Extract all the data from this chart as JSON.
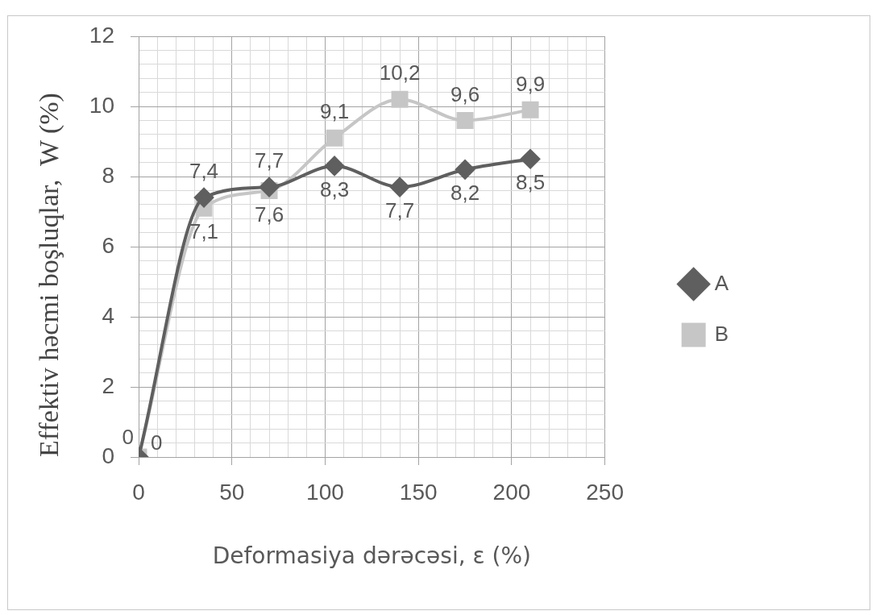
{
  "chart_data": {
    "type": "line",
    "xlabel": "Deformasiya dərəcəsi, ε (%)",
    "ylabel": "Effektiv həcmi boşluqlar,  W (%)",
    "x": [
      0,
      35,
      70,
      105,
      140,
      175,
      210
    ],
    "series": [
      {
        "name": "A",
        "color": "#5f5f5f",
        "marker": "diamond",
        "values": [
          0,
          7.4,
          7.7,
          8.3,
          7.7,
          8.2,
          8.5
        ],
        "value_labels": [
          "0",
          "7,4",
          "7,7",
          "8,3",
          "7,7",
          "8,2",
          "8,5"
        ]
      },
      {
        "name": "B",
        "color": "#c6c6c6",
        "marker": "square",
        "values": [
          0,
          7.1,
          7.6,
          9.1,
          10.2,
          9.6,
          9.9
        ],
        "value_labels": [
          "0",
          "7,1",
          "7,6",
          "9,1",
          "10,2",
          "9,6",
          "9,9"
        ]
      }
    ],
    "xlim": [
      0,
      250
    ],
    "ylim": [
      0,
      12
    ],
    "xticks": [
      0,
      {
        "value": 10,
        "label": null
      },
      {
        "value": 20,
        "label": null
      },
      {
        "value": 30,
        "label": null
      },
      {
        "value": 40,
        "label": null
      },
      50,
      {
        "value": 60,
        "label": null
      },
      {
        "value": 70,
        "label": null
      },
      {
        "value": 80,
        "label": null
      },
      {
        "value": 90,
        "label": null
      },
      100,
      {
        "value": 110,
        "label": null
      },
      {
        "value": 120,
        "label": null
      },
      {
        "value": 130,
        "label": null
      },
      {
        "value": 140,
        "label": null
      },
      150,
      {
        "value": 160,
        "label": null
      },
      {
        "value": 170,
        "label": null
      },
      {
        "value": 180,
        "label": null
      },
      {
        "value": 190,
        "label": null
      },
      200,
      {
        "value": 210,
        "label": null
      },
      {
        "value": 220,
        "label": null
      },
      {
        "value": 230,
        "label": null
      },
      {
        "value": 240,
        "label": null
      },
      250
    ],
    "yticks": [
      0,
      {
        "value": 0.4,
        "label": null
      },
      {
        "value": 0.8,
        "label": null
      },
      {
        "value": 1.2,
        "label": null
      },
      {
        "value": 1.6,
        "label": null
      },
      2,
      {
        "value": 2.4,
        "label": null
      },
      {
        "value": 2.8,
        "label": null
      },
      {
        "value": 3.2,
        "label": null
      },
      {
        "value": 3.6,
        "label": null
      },
      4,
      {
        "value": 4.4,
        "label": null
      },
      {
        "value": 4.8,
        "label": null
      },
      {
        "value": 5.2,
        "label": null
      },
      {
        "value": 5.6,
        "label": null
      },
      6,
      {
        "value": 6.4,
        "label": null
      },
      {
        "value": 6.8,
        "label": null
      },
      {
        "value": 7.2,
        "label": null
      },
      {
        "value": 7.6,
        "label": null
      },
      8,
      {
        "value": 8.4,
        "label": null
      },
      {
        "value": 8.8,
        "label": null
      },
      {
        "value": 9.2,
        "label": null
      },
      {
        "value": 9.6,
        "label": null
      },
      10,
      {
        "value": 10.4,
        "label": null
      },
      {
        "value": 10.8,
        "label": null
      },
      {
        "value": 11.2,
        "label": null
      },
      {
        "value": 11.6,
        "label": null
      },
      12
    ],
    "grid": true,
    "legend": "right",
    "line_style": "solid"
  }
}
